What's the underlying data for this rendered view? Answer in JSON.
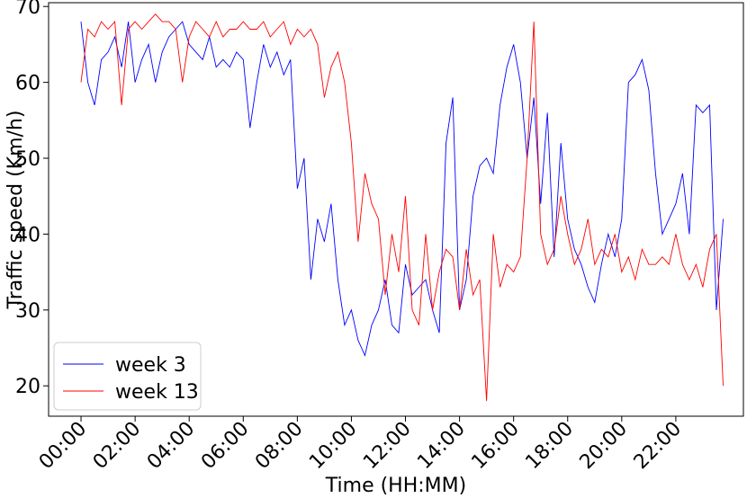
{
  "chart_data": {
    "type": "line",
    "title": "",
    "xlabel": "Time (HH:MM)",
    "ylabel": "Traffic speed (Km/h)",
    "x_unit": "hours",
    "xlim": [
      -1.2,
      24.5
    ],
    "ylim": [
      16,
      70.5
    ],
    "x_ticks": [
      {
        "value": 0,
        "label": "00:00"
      },
      {
        "value": 2,
        "label": "02:00"
      },
      {
        "value": 4,
        "label": "04:00"
      },
      {
        "value": 6,
        "label": "06:00"
      },
      {
        "value": 8,
        "label": "08:00"
      },
      {
        "value": 10,
        "label": "10:00"
      },
      {
        "value": 12,
        "label": "12:00"
      },
      {
        "value": 14,
        "label": "14:00"
      },
      {
        "value": 16,
        "label": "16:00"
      },
      {
        "value": 18,
        "label": "18:00"
      },
      {
        "value": 20,
        "label": "20:00"
      },
      {
        "value": 22,
        "label": "22:00"
      }
    ],
    "y_ticks": [
      20,
      30,
      40,
      50,
      60,
      70
    ],
    "grid": false,
    "legend_position": "lower-left",
    "series": [
      {
        "name": "week 3",
        "color": "#0000ff",
        "x": [
          0,
          0.25,
          0.5,
          0.75,
          1,
          1.25,
          1.5,
          1.75,
          2,
          2.25,
          2.5,
          2.75,
          3,
          3.25,
          3.5,
          3.75,
          4,
          4.25,
          4.5,
          4.75,
          5,
          5.25,
          5.5,
          5.75,
          6,
          6.25,
          6.5,
          6.75,
          7,
          7.25,
          7.5,
          7.75,
          8,
          8.25,
          8.5,
          8.75,
          9,
          9.25,
          9.5,
          9.75,
          10,
          10.25,
          10.5,
          10.75,
          11,
          11.25,
          11.5,
          11.75,
          12,
          12.25,
          12.5,
          12.75,
          13,
          13.25,
          13.5,
          13.75,
          14,
          14.25,
          14.5,
          14.75,
          15,
          15.25,
          15.5,
          15.75,
          16,
          16.25,
          16.5,
          16.75,
          17,
          17.25,
          17.5,
          17.75,
          18,
          18.25,
          18.5,
          18.75,
          19,
          19.25,
          19.5,
          19.75,
          20,
          20.25,
          20.5,
          20.75,
          21,
          21.25,
          21.5,
          21.75,
          22,
          22.25,
          22.5,
          22.75,
          23,
          23.25,
          23.5,
          23.75
        ],
        "values": [
          68,
          60,
          57,
          63,
          64,
          66,
          62,
          68,
          60,
          63,
          65,
          60,
          64,
          66,
          67,
          68,
          65,
          64,
          63,
          66,
          62,
          63,
          62,
          64,
          63,
          54,
          60,
          65,
          62,
          64,
          61,
          63,
          46,
          50,
          34,
          42,
          39,
          44,
          34,
          28,
          30,
          26,
          24,
          28,
          30,
          34,
          28,
          27,
          36,
          32,
          33,
          34,
          30,
          27,
          52,
          58,
          30,
          34,
          45,
          49,
          50,
          48,
          57,
          62,
          65,
          60,
          50,
          58,
          44,
          56,
          37,
          52,
          42,
          38,
          36,
          33,
          31,
          36,
          40,
          37,
          42,
          60,
          61,
          63,
          59,
          48,
          40,
          42,
          44,
          48,
          40,
          57,
          56,
          57,
          30,
          42
        ]
      },
      {
        "name": "week 13",
        "color": "#ff0000",
        "x": [
          0,
          0.25,
          0.5,
          0.75,
          1,
          1.25,
          1.5,
          1.75,
          2,
          2.25,
          2.5,
          2.75,
          3,
          3.25,
          3.5,
          3.75,
          4,
          4.25,
          4.5,
          4.75,
          5,
          5.25,
          5.5,
          5.75,
          6,
          6.25,
          6.5,
          6.75,
          7,
          7.25,
          7.5,
          7.75,
          8,
          8.25,
          8.5,
          8.75,
          9,
          9.25,
          9.5,
          9.75,
          10,
          10.25,
          10.5,
          10.75,
          11,
          11.25,
          11.5,
          11.75,
          12,
          12.25,
          12.5,
          12.75,
          13,
          13.25,
          13.5,
          13.75,
          14,
          14.25,
          14.5,
          14.75,
          15,
          15.25,
          15.5,
          15.75,
          16,
          16.25,
          16.5,
          16.75,
          17,
          17.25,
          17.5,
          17.75,
          18,
          18.25,
          18.5,
          18.75,
          19,
          19.25,
          19.5,
          19.75,
          20,
          20.25,
          20.5,
          20.75,
          21,
          21.25,
          21.5,
          21.75,
          22,
          22.25,
          22.5,
          22.75,
          23,
          23.25,
          23.5,
          23.75
        ],
        "values": [
          60,
          67,
          66,
          68,
          67,
          68,
          57,
          67,
          68,
          67,
          68,
          69,
          68,
          68,
          67,
          60,
          66,
          68,
          67,
          66,
          68,
          66,
          67,
          67,
          68,
          67,
          67,
          68,
          66,
          67,
          68,
          65,
          67,
          66,
          67,
          65,
          58,
          62,
          64,
          60,
          52,
          39,
          48,
          44,
          42,
          32,
          40,
          35,
          45,
          30,
          28,
          40,
          30,
          35,
          38,
          37,
          30,
          38,
          32,
          34,
          18,
          40,
          33,
          36,
          35,
          37,
          50,
          68,
          40,
          36,
          38,
          45,
          40,
          36,
          38,
          42,
          36,
          38,
          37,
          40,
          35,
          37,
          34,
          38,
          36,
          36,
          37,
          36,
          40,
          36,
          34,
          36,
          33,
          38,
          40,
          20
        ]
      }
    ]
  }
}
